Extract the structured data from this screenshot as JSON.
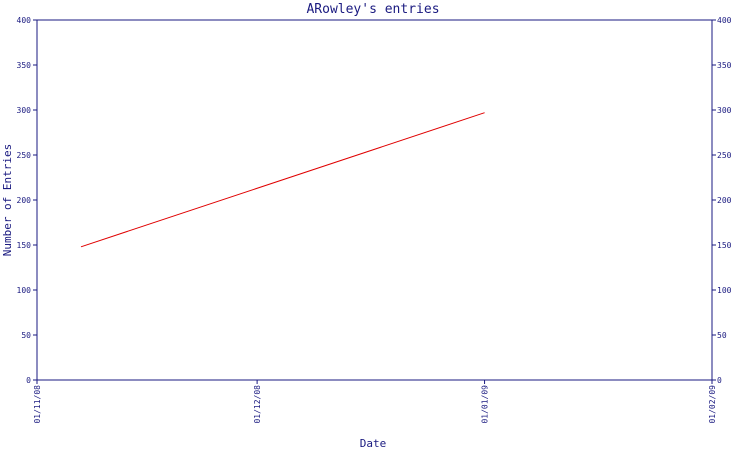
{
  "chart_data": {
    "type": "line",
    "title": "ARowley's entries",
    "xlabel": "Date",
    "ylabel": "Number of Entries",
    "x_ticks": [
      "01/11/08",
      "01/12/08",
      "01/01/09",
      "01/02/09"
    ],
    "x_range": [
      "01/11/08",
      "01/02/09"
    ],
    "ylim": [
      0,
      400
    ],
    "y_ticks": [
      "0",
      "50",
      "100",
      "150",
      "200",
      "250",
      "300",
      "350",
      "400"
    ],
    "series": [
      {
        "x": [
          "2008-11-07",
          "2009-01-01"
        ],
        "values": [
          148,
          297
        ]
      }
    ],
    "grid": false,
    "right_axis": true,
    "colors": {
      "axis": "#1a1a80",
      "line": "#e00000"
    }
  }
}
